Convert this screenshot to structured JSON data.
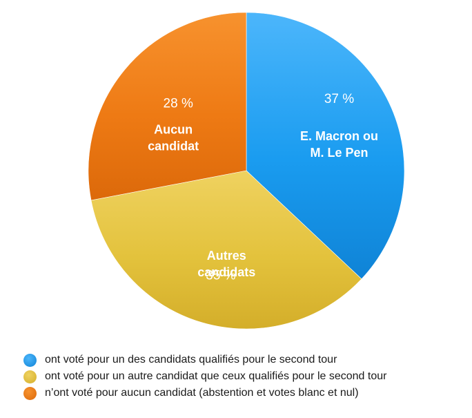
{
  "chart_data": {
    "type": "pie",
    "slices": [
      {
        "value": 37,
        "pct_label": "37 %",
        "name_lines": [
          "E. Macron ou",
          "M. Le Pen"
        ],
        "legend": "ont voté pour un des candidats qualifiés pour le second tour",
        "color": "#1a9cf0",
        "color_light": "#4cb6fb",
        "color_dark": "#0f83d6"
      },
      {
        "value": 35,
        "pct_label": "35 %",
        "name_lines": [
          "Autres",
          "candidats"
        ],
        "legend": "ont voté pour un autre candidat que ceux qualifiés pour le second tour",
        "color": "#e3c23c",
        "color_light": "#efd260",
        "color_dark": "#d4ae2a"
      },
      {
        "value": 28,
        "pct_label": "28 %",
        "name_lines": [
          "Aucun",
          "candidat"
        ],
        "legend": "n’ont voté pour aucun candidat (abstention et votes blanc et nul)",
        "color": "#ee7a14",
        "color_light": "#f7922e",
        "color_dark": "#dc690a"
      }
    ],
    "start": "12 o'clock",
    "direction": "clockwise",
    "legend_position": "bottom-left"
  }
}
